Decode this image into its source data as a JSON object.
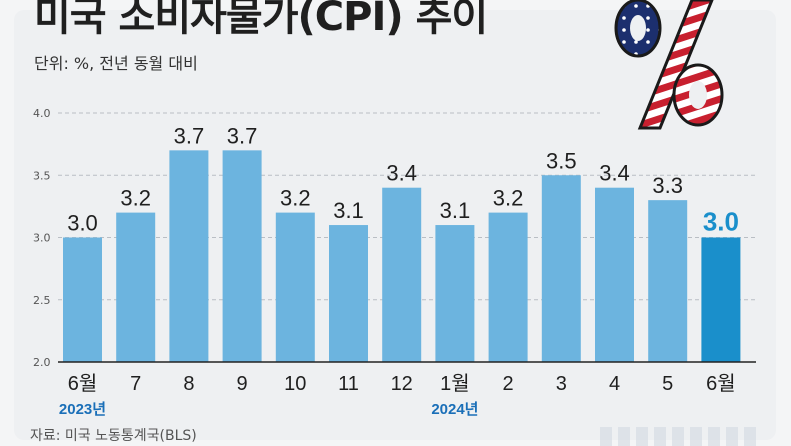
{
  "header": {
    "title": "미국 소비자물가(CPI) 추이",
    "unit": "단위: %, 전년 동월 대비",
    "source": "자료: 미국 노동통계국(BLS)"
  },
  "logo": {
    "icon": "usa-flag-percent-icon"
  },
  "colors": {
    "bar": "#6cb4df",
    "bar_highlight": "#1a8fcb",
    "label_highlight": "#1a8fcb",
    "year_label": "#1a6fb8"
  },
  "chart_data": {
    "type": "bar",
    "title": "미국 소비자물가(CPI) 추이",
    "categories": [
      "6월",
      "7",
      "8",
      "9",
      "10",
      "11",
      "12",
      "1월",
      "2",
      "3",
      "4",
      "5",
      "6월"
    ],
    "values": [
      3.0,
      3.2,
      3.7,
      3.7,
      3.2,
      3.1,
      3.4,
      3.1,
      3.2,
      3.5,
      3.4,
      3.3,
      3.0
    ],
    "data_labels": [
      "3.0",
      "3.2",
      "3.7",
      "3.7",
      "3.2",
      "3.1",
      "3.4",
      "3.1",
      "3.2",
      "3.5",
      "3.4",
      "3.3",
      "3.0"
    ],
    "highlight_index": 12,
    "year_labels": [
      {
        "index": 0,
        "text": "2023년"
      },
      {
        "index": 7,
        "text": "2024년"
      }
    ],
    "y_ticks": [
      "2.0",
      "2.5",
      "3.0",
      "3.5",
      "4.0"
    ],
    "ylim": [
      2.0,
      4.0
    ],
    "grid": true,
    "xlabel": "",
    "ylabel": ""
  }
}
